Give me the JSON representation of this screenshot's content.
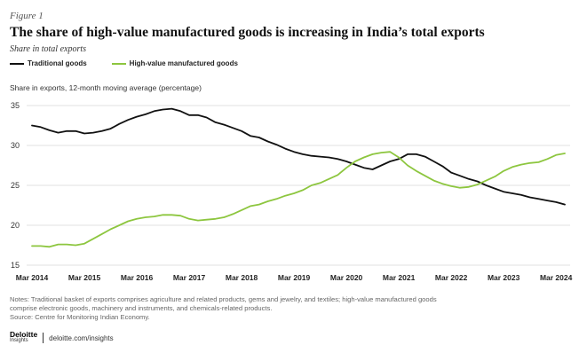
{
  "figure_label": "Figure 1",
  "title": "The share of high-value manufactured goods is increasing in India’s total exports",
  "subtitle": "Share in total exports",
  "notes": [
    "Notes: Traditional basket of exports comprises agriculture and related products, gems and jewelry, and textiles; high-value manufactured goods",
    "comprise electronic goods, machinery and instruments, and chemicals-related products.",
    "Source: Centre for Monitoring Indian Economy."
  ],
  "footer": {
    "brand": "Deloitte",
    "brand_sub": "Insights",
    "url": "deloitte.com/insights"
  },
  "colors": {
    "traditional": "#111111",
    "high_value": "#8dc63f",
    "grid": "#d9d9d9",
    "axis_text": "#333333"
  },
  "chart_data": {
    "type": "line",
    "ylabel": "Share in exports, 12-month moving average (percentage)",
    "ylim": [
      15,
      35
    ],
    "yticks": [
      15,
      20,
      25,
      30,
      35
    ],
    "xlim": [
      "2014-03",
      "2024-05"
    ],
    "xticks": [
      "Mar 2014",
      "Mar 2015",
      "Mar 2016",
      "Mar 2017",
      "Mar 2018",
      "Mar 2019",
      "Mar 2020",
      "Mar 2021",
      "Mar 2022",
      "Mar 2023",
      "Mar 2024"
    ],
    "legend_position": "top-left",
    "grid": "horizontal",
    "series": [
      {
        "name": "Traditional goods",
        "points": [
          [
            "2014-03",
            32.5
          ],
          [
            "2014-05",
            32.3
          ],
          [
            "2014-07",
            31.9
          ],
          [
            "2014-09",
            31.6
          ],
          [
            "2014-11",
            31.8
          ],
          [
            "2015-01",
            31.8
          ],
          [
            "2015-03",
            31.5
          ],
          [
            "2015-05",
            31.6
          ],
          [
            "2015-07",
            31.8
          ],
          [
            "2015-09",
            32.1
          ],
          [
            "2015-11",
            32.7
          ],
          [
            "2016-01",
            33.2
          ],
          [
            "2016-03",
            33.6
          ],
          [
            "2016-05",
            33.9
          ],
          [
            "2016-07",
            34.3
          ],
          [
            "2016-09",
            34.5
          ],
          [
            "2016-11",
            34.6
          ],
          [
            "2017-01",
            34.3
          ],
          [
            "2017-03",
            33.8
          ],
          [
            "2017-05",
            33.8
          ],
          [
            "2017-07",
            33.5
          ],
          [
            "2017-09",
            32.9
          ],
          [
            "2017-11",
            32.6
          ],
          [
            "2018-01",
            32.2
          ],
          [
            "2018-03",
            31.8
          ],
          [
            "2018-05",
            31.2
          ],
          [
            "2018-07",
            31.0
          ],
          [
            "2018-09",
            30.5
          ],
          [
            "2018-11",
            30.1
          ],
          [
            "2019-01",
            29.6
          ],
          [
            "2019-03",
            29.2
          ],
          [
            "2019-05",
            28.9
          ],
          [
            "2019-07",
            28.7
          ],
          [
            "2019-09",
            28.6
          ],
          [
            "2019-11",
            28.5
          ],
          [
            "2020-01",
            28.3
          ],
          [
            "2020-03",
            28.0
          ],
          [
            "2020-05",
            27.6
          ],
          [
            "2020-07",
            27.2
          ],
          [
            "2020-09",
            27.0
          ],
          [
            "2020-11",
            27.5
          ],
          [
            "2021-01",
            28.0
          ],
          [
            "2021-03",
            28.3
          ],
          [
            "2021-05",
            28.9
          ],
          [
            "2021-07",
            28.9
          ],
          [
            "2021-09",
            28.6
          ],
          [
            "2021-11",
            28.0
          ],
          [
            "2022-01",
            27.4
          ],
          [
            "2022-03",
            26.6
          ],
          [
            "2022-05",
            26.2
          ],
          [
            "2022-07",
            25.8
          ],
          [
            "2022-09",
            25.5
          ],
          [
            "2022-11",
            25.0
          ],
          [
            "2023-01",
            24.6
          ],
          [
            "2023-03",
            24.2
          ],
          [
            "2023-05",
            24.0
          ],
          [
            "2023-07",
            23.8
          ],
          [
            "2023-09",
            23.5
          ],
          [
            "2023-11",
            23.3
          ],
          [
            "2024-01",
            23.1
          ],
          [
            "2024-03",
            22.9
          ],
          [
            "2024-05",
            22.6
          ]
        ]
      },
      {
        "name": "High-value manufactured goods",
        "points": [
          [
            "2014-03",
            17.4
          ],
          [
            "2014-05",
            17.4
          ],
          [
            "2014-07",
            17.3
          ],
          [
            "2014-09",
            17.6
          ],
          [
            "2014-11",
            17.6
          ],
          [
            "2015-01",
            17.5
          ],
          [
            "2015-03",
            17.7
          ],
          [
            "2015-05",
            18.3
          ],
          [
            "2015-07",
            18.9
          ],
          [
            "2015-09",
            19.5
          ],
          [
            "2015-11",
            20.0
          ],
          [
            "2016-01",
            20.5
          ],
          [
            "2016-03",
            20.8
          ],
          [
            "2016-05",
            21.0
          ],
          [
            "2016-07",
            21.1
          ],
          [
            "2016-09",
            21.3
          ],
          [
            "2016-11",
            21.3
          ],
          [
            "2017-01",
            21.2
          ],
          [
            "2017-03",
            20.8
          ],
          [
            "2017-05",
            20.6
          ],
          [
            "2017-07",
            20.7
          ],
          [
            "2017-09",
            20.8
          ],
          [
            "2017-11",
            21.0
          ],
          [
            "2018-01",
            21.4
          ],
          [
            "2018-03",
            21.9
          ],
          [
            "2018-05",
            22.4
          ],
          [
            "2018-07",
            22.6
          ],
          [
            "2018-09",
            23.0
          ],
          [
            "2018-11",
            23.3
          ],
          [
            "2019-01",
            23.7
          ],
          [
            "2019-03",
            24.0
          ],
          [
            "2019-05",
            24.4
          ],
          [
            "2019-07",
            25.0
          ],
          [
            "2019-09",
            25.3
          ],
          [
            "2019-11",
            25.8
          ],
          [
            "2020-01",
            26.3
          ],
          [
            "2020-03",
            27.2
          ],
          [
            "2020-05",
            28.0
          ],
          [
            "2020-07",
            28.5
          ],
          [
            "2020-09",
            28.9
          ],
          [
            "2020-11",
            29.1
          ],
          [
            "2021-01",
            29.2
          ],
          [
            "2021-03",
            28.5
          ],
          [
            "2021-05",
            27.5
          ],
          [
            "2021-07",
            26.8
          ],
          [
            "2021-09",
            26.2
          ],
          [
            "2021-11",
            25.6
          ],
          [
            "2022-01",
            25.2
          ],
          [
            "2022-03",
            24.9
          ],
          [
            "2022-05",
            24.7
          ],
          [
            "2022-07",
            24.8
          ],
          [
            "2022-09",
            25.1
          ],
          [
            "2022-11",
            25.6
          ],
          [
            "2023-01",
            26.1
          ],
          [
            "2023-03",
            26.8
          ],
          [
            "2023-05",
            27.3
          ],
          [
            "2023-07",
            27.6
          ],
          [
            "2023-09",
            27.8
          ],
          [
            "2023-11",
            27.9
          ],
          [
            "2024-01",
            28.3
          ],
          [
            "2024-03",
            28.8
          ],
          [
            "2024-05",
            29.0
          ]
        ]
      }
    ]
  }
}
